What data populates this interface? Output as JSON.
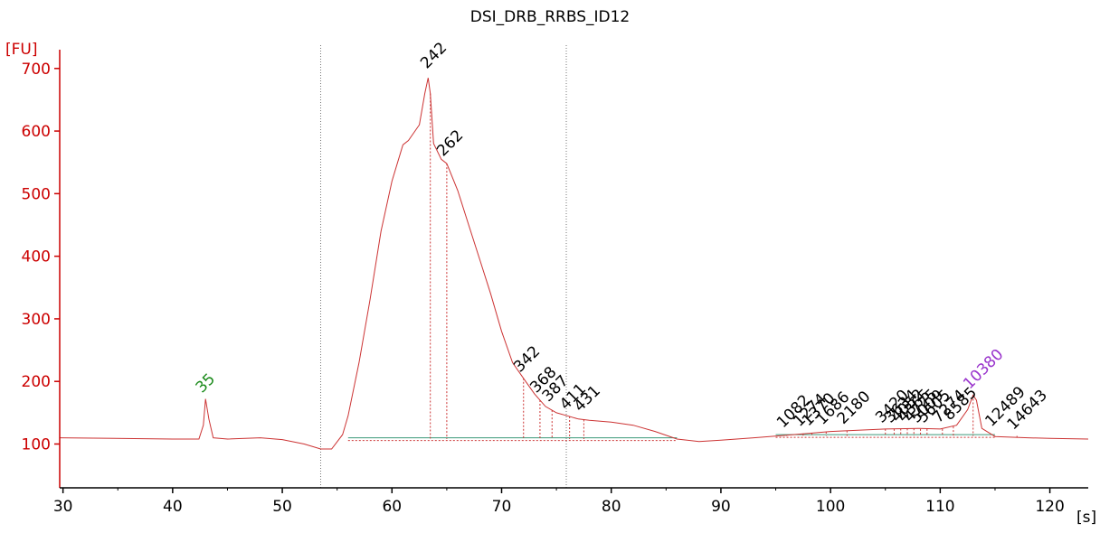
{
  "chart_data": {
    "type": "line",
    "title": "DSI_DRB_RRBS_ID12",
    "ylabel": "[FU]",
    "xunit": "[s]",
    "xlim": [
      29.7,
      123.5
    ],
    "ylim": [
      30,
      730
    ],
    "x_ticks": [
      30,
      40,
      50,
      60,
      70,
      80,
      90,
      100,
      110,
      120
    ],
    "y_ticks": [
      100,
      200,
      300,
      400,
      500,
      600,
      700
    ],
    "grid": false,
    "legend": "none",
    "colors": {
      "trace": "#cc3333",
      "axis_y": "#cc0000",
      "axis_x": "#000000",
      "baseline": "#3c9a7a",
      "marker_green": "#1a8a1a",
      "marker_purple": "#9933cc",
      "dotted_line": "#cc3333"
    },
    "boundary_lines_x": [
      53.5,
      75.9
    ],
    "series": [
      {
        "x": [
          29.7,
          40,
          42.4,
          42.8,
          43.0,
          43.3,
          43.7,
          45,
          48,
          50,
          52,
          53.5,
          54.5,
          55.5,
          56,
          57,
          58,
          59,
          60,
          61,
          61.5,
          62.5,
          63.0,
          63.3,
          63.5,
          63.8,
          64.5,
          65,
          66,
          67,
          68,
          69,
          70,
          71,
          72,
          73,
          74,
          75,
          76,
          77,
          78,
          80,
          82,
          84,
          86,
          88,
          90,
          93,
          96,
          100,
          105,
          108,
          110,
          111.5,
          112.5,
          113.0,
          113.3,
          113.8,
          115,
          118,
          120,
          123.5
        ],
        "y": [
          110,
          108,
          108,
          130,
          172,
          140,
          110,
          108,
          110,
          107,
          100,
          92,
          92,
          115,
          145,
          230,
          330,
          440,
          520,
          578,
          585,
          610,
          660,
          685,
          660,
          580,
          555,
          548,
          505,
          450,
          395,
          340,
          280,
          230,
          205,
          180,
          160,
          150,
          145,
          140,
          138,
          135,
          130,
          120,
          108,
          104,
          106,
          110,
          114,
          120,
          124,
          125,
          124,
          130,
          155,
          178,
          170,
          125,
          112,
          110,
          109,
          108
        ]
      }
    ],
    "baseline": [
      {
        "x": [
          56,
          86
        ],
        "y": 110
      },
      {
        "x": [
          95,
          115
        ],
        "y": 115
      }
    ],
    "peak_labels": [
      {
        "label": "35",
        "x": 43.0,
        "y": 172,
        "color": "green"
      },
      {
        "label": "242",
        "x": 63.5,
        "y": 690,
        "color": "black"
      },
      {
        "label": "262",
        "x": 65.0,
        "y": 550,
        "color": "black"
      },
      {
        "label": "342",
        "x": 72.0,
        "y": 205,
        "color": "black"
      },
      {
        "label": "368",
        "x": 73.5,
        "y": 172,
        "color": "black"
      },
      {
        "label": "387",
        "x": 74.6,
        "y": 158,
        "color": "black"
      },
      {
        "label": "411",
        "x": 76.2,
        "y": 145,
        "color": "black"
      },
      {
        "label": "431",
        "x": 77.5,
        "y": 142,
        "color": "black"
      },
      {
        "label": "1082",
        "x": 96.0,
        "y": 116,
        "color": "black"
      },
      {
        "label": "1274",
        "x": 97.5,
        "y": 118,
        "color": "black"
      },
      {
        "label": "1370",
        "x": 98.3,
        "y": 119,
        "color": "black"
      },
      {
        "label": "1686",
        "x": 99.6,
        "y": 121,
        "color": "black"
      },
      {
        "label": "2180",
        "x": 101.5,
        "y": 122,
        "color": "black"
      },
      {
        "label": "3420",
        "x": 105.0,
        "y": 124,
        "color": "black"
      },
      {
        "label": "3634",
        "x": 105.8,
        "y": 124,
        "color": "black"
      },
      {
        "label": "4052",
        "x": 106.4,
        "y": 125,
        "color": "black"
      },
      {
        "label": "4365",
        "x": 107.0,
        "y": 125,
        "color": "black"
      },
      {
        "label": "4725",
        "x": 107.6,
        "y": 125,
        "color": "black"
      },
      {
        "label": "5009",
        "x": 108.2,
        "y": 124,
        "color": "black"
      },
      {
        "label": "5605",
        "x": 108.8,
        "y": 124,
        "color": "black"
      },
      {
        "label": "7274",
        "x": 110.2,
        "y": 124,
        "color": "black"
      },
      {
        "label": "8585",
        "x": 111.2,
        "y": 128,
        "color": "black"
      },
      {
        "label": "10380",
        "x": 113.0,
        "y": 178,
        "color": "purple"
      },
      {
        "label": "12489",
        "x": 115.0,
        "y": 118,
        "color": "black"
      },
      {
        "label": "14643",
        "x": 117.0,
        "y": 113,
        "color": "black"
      }
    ]
  }
}
